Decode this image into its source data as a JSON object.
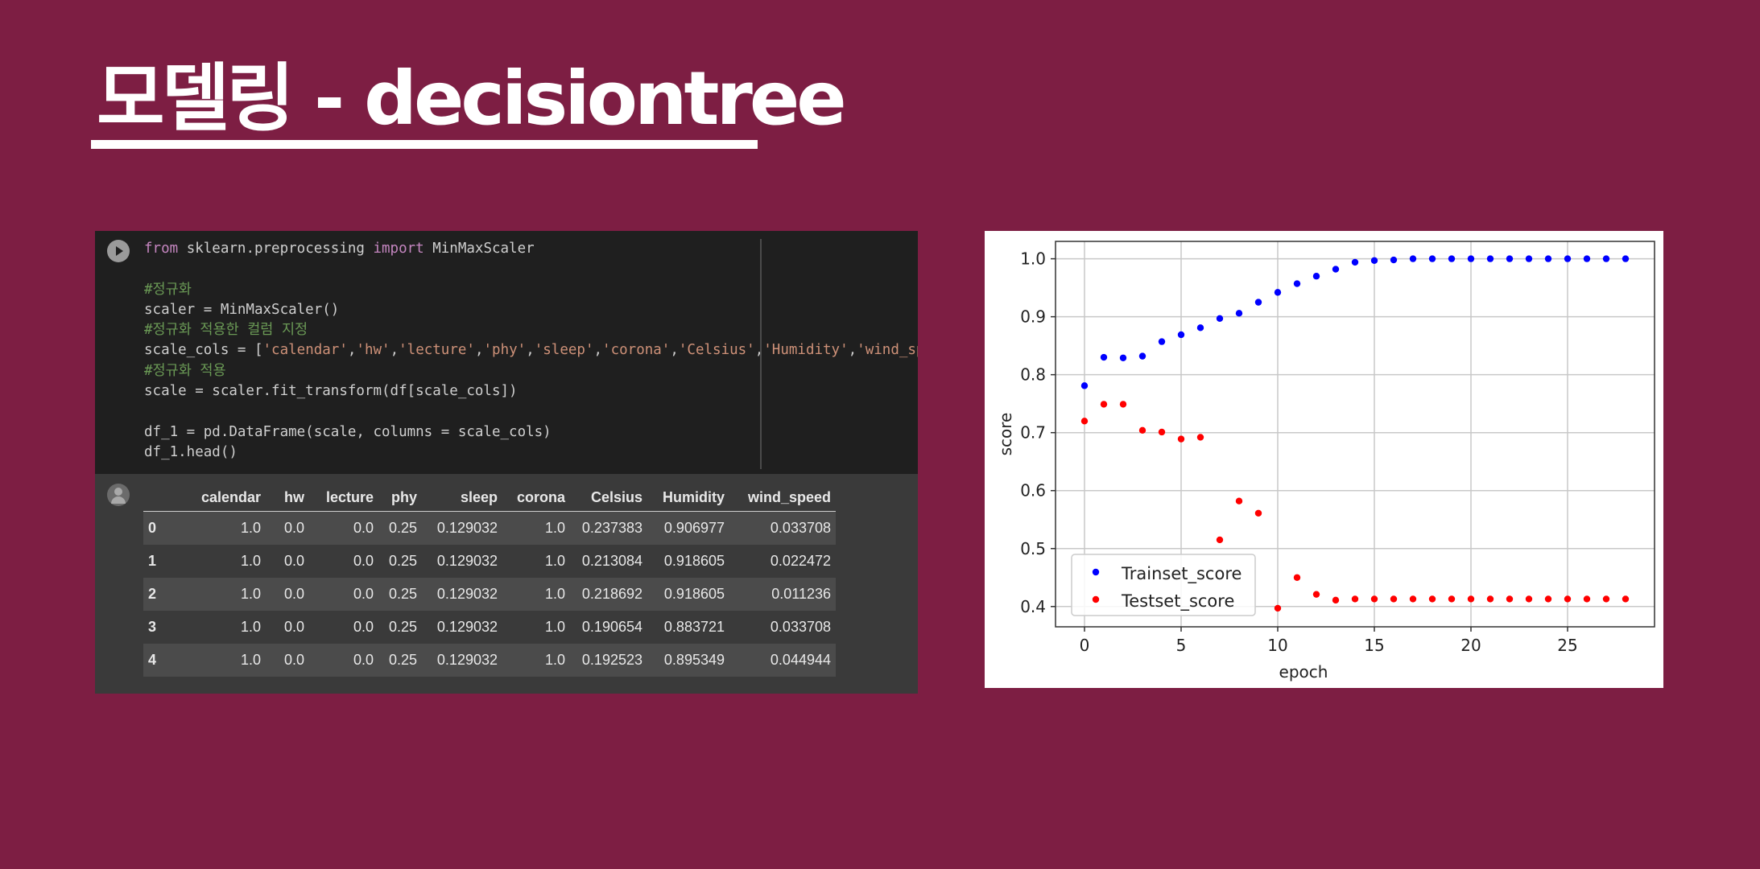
{
  "slide": {
    "title": "모델링 - decisiontree",
    "colors": {
      "background": "#7d1e43",
      "title": "#ffffff"
    }
  },
  "notebook": {
    "code_lines": [
      [
        {
          "t": "from",
          "c": "kw"
        },
        {
          "t": " sklearn.preprocessing ",
          "c": ""
        },
        {
          "t": "import",
          "c": "kw"
        },
        {
          "t": " MinMaxScaler",
          "c": ""
        }
      ],
      [],
      [
        {
          "t": "#정규화",
          "c": "cm"
        }
      ],
      [
        {
          "t": "scaler = MinMaxScaler()",
          "c": ""
        }
      ],
      [
        {
          "t": "#정규화 적용한 컬럼 지정",
          "c": "cm"
        }
      ],
      [
        {
          "t": "scale_cols = [",
          "c": ""
        },
        {
          "t": "'calendar'",
          "c": "st"
        },
        {
          "t": ",",
          "c": ""
        },
        {
          "t": "'hw'",
          "c": "st"
        },
        {
          "t": ",",
          "c": ""
        },
        {
          "t": "'lecture'",
          "c": "st"
        },
        {
          "t": ",",
          "c": ""
        },
        {
          "t": "'phy'",
          "c": "st"
        },
        {
          "t": ",",
          "c": ""
        },
        {
          "t": "'sleep'",
          "c": "st"
        },
        {
          "t": ",",
          "c": ""
        },
        {
          "t": "'corona'",
          "c": "st"
        },
        {
          "t": ",",
          "c": ""
        },
        {
          "t": "'Celsius'",
          "c": "st"
        },
        {
          "t": ",",
          "c": ""
        },
        {
          "t": "'Humidity'",
          "c": "st"
        },
        {
          "t": ",",
          "c": ""
        },
        {
          "t": "'wind_speed'",
          "c": "st"
        },
        {
          "t": "]",
          "c": ""
        }
      ],
      [
        {
          "t": "#정규화 적용",
          "c": "cm"
        }
      ],
      [
        {
          "t": "scale = scaler.fit_transform(df[scale_cols])",
          "c": ""
        }
      ],
      [],
      [
        {
          "t": "df_1 = pd.DataFrame(scale, columns = scale_cols)",
          "c": ""
        }
      ],
      [
        {
          "t": "df_1.head()",
          "c": ""
        }
      ]
    ],
    "table": {
      "columns": [
        "",
        "calendar",
        "hw",
        "lecture",
        "phy",
        "sleep",
        "corona",
        "Celsius",
        "Humidity",
        "wind_speed"
      ],
      "rows": [
        [
          "0",
          "1.0",
          "0.0",
          "0.0",
          "0.25",
          "0.129032",
          "1.0",
          "0.237383",
          "0.906977",
          "0.033708"
        ],
        [
          "1",
          "1.0",
          "0.0",
          "0.0",
          "0.25",
          "0.129032",
          "1.0",
          "0.213084",
          "0.918605",
          "0.022472"
        ],
        [
          "2",
          "1.0",
          "0.0",
          "0.0",
          "0.25",
          "0.129032",
          "1.0",
          "0.218692",
          "0.918605",
          "0.011236"
        ],
        [
          "3",
          "1.0",
          "0.0",
          "0.0",
          "0.25",
          "0.129032",
          "1.0",
          "0.190654",
          "0.883721",
          "0.033708"
        ],
        [
          "4",
          "1.0",
          "0.0",
          "0.0",
          "0.25",
          "0.129032",
          "1.0",
          "0.192523",
          "0.895349",
          "0.044944"
        ]
      ]
    }
  },
  "chart_data": {
    "type": "scatter",
    "title": "",
    "xlabel": "epoch",
    "ylabel": "score",
    "xlim": [
      -1.5,
      29.5
    ],
    "ylim": [
      0.365,
      1.03
    ],
    "xticks": [
      0,
      5,
      10,
      15,
      20,
      25
    ],
    "yticks": [
      0.4,
      0.5,
      0.6,
      0.7,
      0.8,
      0.9,
      1.0
    ],
    "grid": true,
    "legend_position": "lower-left",
    "series": [
      {
        "name": "Trainset_score",
        "color": "#0000ff",
        "x": [
          0,
          1,
          2,
          3,
          4,
          5,
          6,
          7,
          8,
          9,
          10,
          11,
          12,
          13,
          14,
          15,
          16,
          17,
          18,
          19,
          20,
          21,
          22,
          23,
          24,
          25,
          26,
          27,
          28
        ],
        "y": [
          0.781,
          0.83,
          0.829,
          0.832,
          0.857,
          0.869,
          0.881,
          0.897,
          0.906,
          0.925,
          0.942,
          0.957,
          0.97,
          0.982,
          0.994,
          0.997,
          0.998,
          1.0,
          1.0,
          1.0,
          1.0,
          1.0,
          1.0,
          1.0,
          1.0,
          1.0,
          1.0,
          1.0,
          1.0
        ]
      },
      {
        "name": "Testset_score",
        "color": "#ff0000",
        "x": [
          0,
          1,
          2,
          3,
          4,
          5,
          6,
          7,
          8,
          9,
          10,
          11,
          12,
          13,
          14,
          15,
          16,
          17,
          18,
          19,
          20,
          21,
          22,
          23,
          24,
          25,
          26,
          27,
          28
        ],
        "y": [
          0.72,
          0.749,
          0.749,
          0.704,
          0.701,
          0.689,
          0.692,
          0.515,
          0.582,
          0.561,
          0.397,
          0.45,
          0.421,
          0.411,
          0.413,
          0.413,
          0.413,
          0.413,
          0.413,
          0.413,
          0.413,
          0.413,
          0.413,
          0.413,
          0.413,
          0.413,
          0.413,
          0.413,
          0.413
        ]
      }
    ]
  }
}
